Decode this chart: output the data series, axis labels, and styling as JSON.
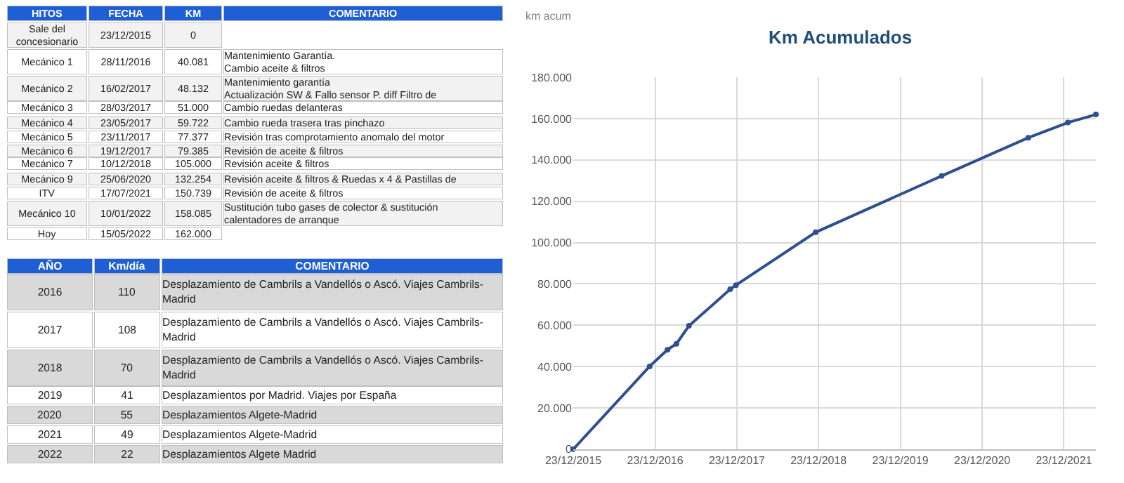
{
  "chart_data": [
    {
      "type": "other",
      "categories": [
        "HITOS",
        "FECHA",
        "KM",
        "COMENTARIO"
      ],
      "cell_labels": [
        [
          "Sale del\nconcesionario",
          "23/12/2015",
          "0",
          null
        ],
        [
          "Mecánico 1",
          "28/11/2016",
          "40.081",
          "Mantenimiento Garantía.\nCambio aceite & filtros"
        ],
        [
          "Mecánico 2",
          "16/02/2017",
          "48.132",
          "Mantenimiento garantía\nActualización SW & Fallo sensor P. diff Filtro de"
        ],
        [
          "Mecánico 3",
          "28/03/2017",
          "51.000",
          "Cambio ruedas delanteras"
        ],
        [
          "Mecánico 4",
          "23/05/2017",
          "59.722",
          "Cambio rueda trasera tras pinchazo"
        ],
        [
          "Mecánico 5",
          "23/11/2017",
          "77.377",
          "Revisión tras comprotamiento anomalo del motor"
        ],
        [
          "Mecánico 6",
          "19/12/2017",
          "79.385",
          "Revisión de aceite & filtros"
        ],
        [
          "Mecánico 7",
          "10/12/2018",
          "105.000",
          "Revisión aceite & filtros"
        ],
        [
          "Mecánico 9",
          "25/06/2020",
          "132.254",
          "Revisión aceite & filtros & Ruedas x 4 & Pastillas de"
        ],
        [
          "ITV",
          "17/07/2021",
          "150.739",
          "Revisión de aceite & filtros"
        ],
        [
          "Mecánico 10",
          "10/01/2022",
          "158.085",
          "Sustitución tubo gases de colector & sustitución\ncalentadores de arranque"
        ],
        [
          "Hoy",
          "15/05/2022",
          "162.000",
          null
        ]
      ]
    },
    {
      "type": "other",
      "categories": [
        "AÑO",
        "Km/día",
        "COMENTARIO"
      ],
      "cell_labels": [
        [
          "2016",
          "110",
          "Desplazamiento de Cambrils a Vandellós o Ascó. Viajes Cambrils-\nMadrid"
        ],
        [
          "2017",
          "108",
          "Desplazamiento de Cambrils a Vandellós o Ascó. Viajes Cambrils-\nMadrid"
        ],
        [
          "2018",
          "70",
          "Desplazamiento de Cambrils a Vandellós o Ascó. Viajes Cambrils-\nMadrid"
        ],
        [
          "2019",
          "41",
          "Desplazamientos por Madrid. Viajes por España"
        ],
        [
          "2020",
          "55",
          "Desplazamientos Algete-Madrid"
        ],
        [
          "2021",
          "49",
          "Desplazamientos Algete-Madrid"
        ],
        [
          "2022",
          "22",
          "Desplazamientos Algete Madrid"
        ]
      ]
    },
    {
      "type": "line",
      "title": "Km Acumulados",
      "ylabel": "km acum",
      "x": [
        "2015-12-23",
        "2016-11-28",
        "2017-02-16",
        "2017-03-28",
        "2017-05-23",
        "2017-11-23",
        "2017-12-19",
        "2018-12-10",
        "2020-06-25",
        "2021-07-17",
        "2022-01-10",
        "2022-05-15"
      ],
      "series": [
        {
          "color": "#2f4f8f",
          "values": [
            0,
            40081,
            48132,
            51000,
            59722,
            77377,
            79385,
            105000,
            132254,
            150739,
            158085,
            162000
          ]
        }
      ],
      "marker": "circle",
      "line_style": "solid",
      "grid": true,
      "xlim": [
        "2015-12-23",
        "2022-05-15"
      ],
      "xticks": [
        {
          "value": "2015-12-23",
          "label": "23/12/2015"
        },
        {
          "value": "2016-12-23",
          "label": "23/12/2016"
        },
        {
          "value": "2017-12-23",
          "label": "23/12/2017"
        },
        {
          "value": "2018-12-23",
          "label": "23/12/2018"
        },
        {
          "value": "2019-12-23",
          "label": "23/12/2019"
        },
        {
          "value": "2020-12-23",
          "label": "23/12/2020"
        },
        {
          "value": "2021-12-23",
          "label": "23/12/2021"
        }
      ],
      "ylim": [
        0,
        180000
      ],
      "yticks": [
        0,
        {
          "value": 20000,
          "label": "20.000"
        },
        {
          "value": 40000,
          "label": "40.000"
        },
        {
          "value": 60000,
          "label": "60.000"
        },
        {
          "value": 80000,
          "label": "80.000"
        },
        {
          "value": 100000,
          "label": "100.000"
        },
        {
          "value": 120000,
          "label": "120.000"
        },
        {
          "value": 140000,
          "label": "140.000"
        },
        {
          "value": 160000,
          "label": "160.000"
        },
        {
          "value": 180000,
          "label": "180.000"
        }
      ]
    }
  ]
}
